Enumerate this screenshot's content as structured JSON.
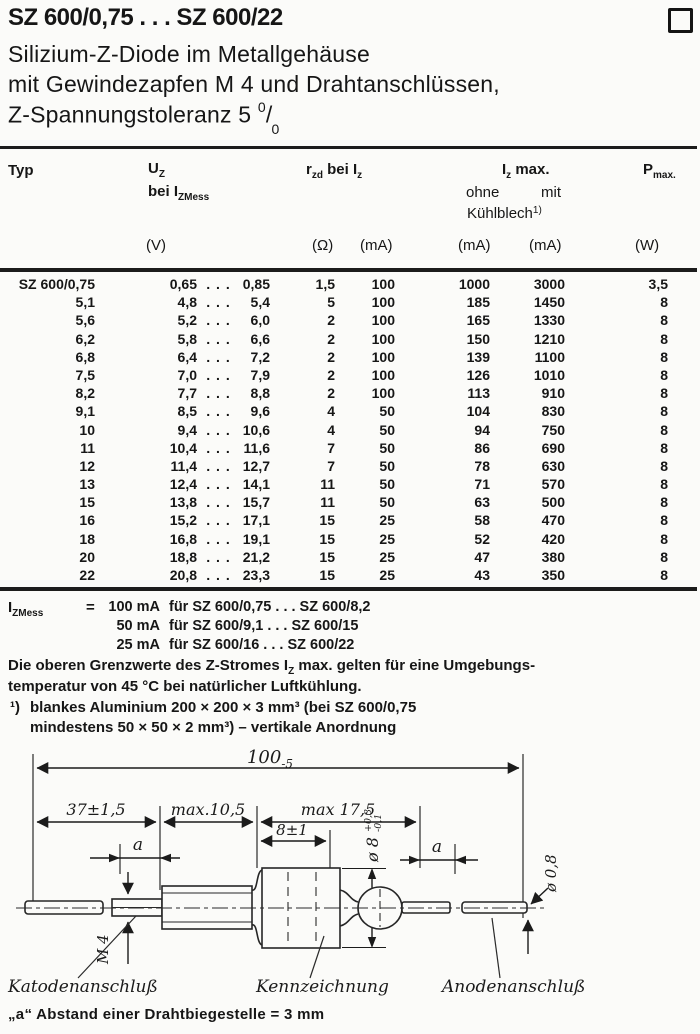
{
  "title": {
    "main": "SZ 600/0,75 . . . SZ 600/22",
    "sub1": "Silizium-Z-Diode im Metallgehäuse",
    "sub2": "mit Gewindezapfen M 4 und Drahtanschlüssen,",
    "sub3_pre": "Z-Spannungstoleranz 5 ",
    "sub3_sup": "0",
    "sub3_slash": "/",
    "sub3_sub": "0"
  },
  "table": {
    "header": {
      "typ": "Typ",
      "uz_base": "U",
      "uz_sub": "Z",
      "uz_bei_base": "bei I",
      "uz_bei_sub": "ZMess",
      "rzd_base": "r",
      "rzd_sub": "zd",
      "rzd_mid": " bei I",
      "rzd_sub2": "z",
      "iz_base": "I",
      "iz_sub": "z",
      "iz_rest": " max.",
      "ohne": "ohne",
      "mit": "mit",
      "kuehl_base": "Kühlblech",
      "kuehl_sup": "1)",
      "pmax_base": "P",
      "pmax_sub": "max.",
      "unit_v": "(V)",
      "unit_ohm": "(Ω)",
      "unit_ma1": "(mA)",
      "unit_ma2": "(mA)",
      "unit_ma3": "(mA)",
      "unit_w": "(W)"
    },
    "dots": ". . .",
    "rows": [
      [
        "SZ 600/0,75",
        "0,65",
        "0,85",
        "1,5",
        "100",
        "1000",
        "3000",
        "3,5"
      ],
      [
        "5,1",
        "4,8",
        "5,4",
        "5",
        "100",
        "185",
        "1450",
        "8"
      ],
      [
        "5,6",
        "5,2",
        "6,0",
        "2",
        "100",
        "165",
        "1330",
        "8"
      ],
      [
        "6,2",
        "5,8",
        "6,6",
        "2",
        "100",
        "150",
        "1210",
        "8"
      ],
      [
        "6,8",
        "6,4",
        "7,2",
        "2",
        "100",
        "139",
        "1100",
        "8"
      ],
      [
        "7,5",
        "7,0",
        "7,9",
        "2",
        "100",
        "126",
        "1010",
        "8"
      ],
      [
        "8,2",
        "7,7",
        "8,8",
        "2",
        "100",
        "113",
        "910",
        "8"
      ],
      [
        "9,1",
        "8,5",
        "9,6",
        "4",
        "50",
        "104",
        "830",
        "8"
      ],
      [
        "10",
        "9,4",
        "10,6",
        "4",
        "50",
        "94",
        "750",
        "8"
      ],
      [
        "11",
        "10,4",
        "11,6",
        "7",
        "50",
        "86",
        "690",
        "8"
      ],
      [
        "12",
        "11,4",
        "12,7",
        "7",
        "50",
        "78",
        "630",
        "8"
      ],
      [
        "13",
        "12,4",
        "14,1",
        "11",
        "50",
        "71",
        "570",
        "8"
      ],
      [
        "15",
        "13,8",
        "15,7",
        "11",
        "50",
        "63",
        "500",
        "8"
      ],
      [
        "16",
        "15,2",
        "17,1",
        "15",
        "25",
        "58",
        "470",
        "8"
      ],
      [
        "18",
        "16,8",
        "19,1",
        "15",
        "25",
        "52",
        "420",
        "8"
      ],
      [
        "20",
        "18,8",
        "21,2",
        "15",
        "25",
        "47",
        "380",
        "8"
      ],
      [
        "22",
        "20,8",
        "23,3",
        "15",
        "25",
        "43",
        "350",
        "8"
      ]
    ]
  },
  "notes": {
    "izmess_base": "I",
    "izmess_sub": "ZMess",
    "izmess_eq": "=",
    "iz_lines": [
      {
        "value": "100 mA",
        "text": "für SZ 600/0,75 . . . SZ 600/8,2"
      },
      {
        "value": "50 mA",
        "text": "für SZ 600/9,1  . . . SZ 600/15"
      },
      {
        "value": "25 mA",
        "text": "für SZ 600/16  . . . SZ 600/22"
      }
    ],
    "limit_a": "Die oberen Grenzwerte des Z-Stromes I",
    "limit_sub": "Z",
    "limit_b": " max. gelten für eine Umgebungs-",
    "limit_line2": "temperatur von 45 °C bei natürlicher Luftkühlung.",
    "fn1_marker": "¹)",
    "fn1_line1": "blankes Aluminium 200 × 200 × 3 mm³ (bei SZ 600/0,75",
    "fn1_line2": "mindestens 50 × 50 × 2 mm³)  –  vertikale Anordnung",
    "note_a": "„a“ Abstand einer Drahtbiegestelle = 3 mm"
  },
  "drawing": {
    "dim_overall": "100",
    "dim_overall_tol": "-5",
    "dim_37": "37±1,5",
    "dim_105": "max.10,5",
    "dim_175": "max 17,5",
    "dim_8": "8±1",
    "dim_a_left": "a",
    "dim_a_right": "a",
    "dia8": "ø 8",
    "dia8_tol_plus": "+0,3",
    "dia8_tol_minus": "-0,1",
    "dia_wire": "ø 0,8",
    "thread": "M 4",
    "cathode": "Katodenanschluß",
    "marking": "Kennzeichnung",
    "anode": "Anodenanschluß"
  }
}
